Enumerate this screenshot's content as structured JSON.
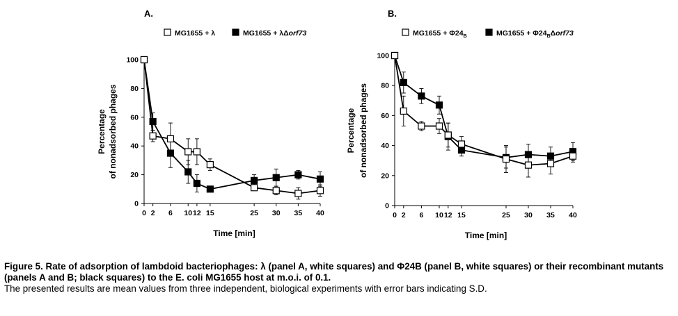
{
  "chart_data": [
    {
      "type": "line",
      "panel_label": "A.",
      "xlabel": "Time [min]",
      "ylabel_line1": "Percentage",
      "ylabel_line2": "of nonadsorbed phages",
      "xlim": [
        0,
        40
      ],
      "ylim": [
        0,
        100
      ],
      "x_ticks": [
        0,
        2,
        6,
        10,
        12,
        15,
        25,
        30,
        35,
        40
      ],
      "y_ticks": [
        0,
        20,
        40,
        60,
        80,
        100
      ],
      "grid": false,
      "legend_position": "top",
      "series": [
        {
          "name": "MG1655 + λ",
          "marker": "open-square",
          "x": [
            0,
            2,
            6,
            10,
            12,
            15,
            25,
            30,
            35,
            40
          ],
          "y": [
            100,
            47,
            45,
            36,
            36,
            27,
            11,
            9,
            7,
            9
          ],
          "error": [
            0,
            4,
            11,
            9,
            9,
            4,
            2,
            3,
            4,
            4
          ]
        },
        {
          "name": "MG1655 + λΔorf73",
          "marker": "filled-square",
          "x": [
            0,
            2,
            6,
            10,
            12,
            15,
            25,
            30,
            35,
            40
          ],
          "y": [
            100,
            57,
            35,
            22,
            14,
            10,
            16,
            18,
            20,
            17
          ],
          "error": [
            0,
            6,
            10,
            8,
            6,
            2,
            4,
            6,
            3,
            5
          ]
        }
      ]
    },
    {
      "type": "line",
      "panel_label": "B.",
      "xlabel": "Time [min]",
      "ylabel_line1": "Percentage",
      "ylabel_line2": "of nonadsorbed phages",
      "xlim": [
        0,
        40
      ],
      "ylim": [
        0,
        100
      ],
      "x_ticks": [
        0,
        2,
        6,
        10,
        12,
        15,
        25,
        30,
        35,
        40
      ],
      "y_ticks": [
        0,
        20,
        40,
        60,
        80,
        100
      ],
      "grid": false,
      "legend_position": "top",
      "series": [
        {
          "name": "MG1655 + Φ24B",
          "marker": "open-square",
          "x": [
            0,
            2,
            6,
            10,
            12,
            15,
            25,
            30,
            35,
            40
          ],
          "y": [
            100,
            63,
            53,
            53,
            47,
            41,
            31,
            27,
            28,
            33
          ],
          "error": [
            0,
            10,
            3,
            5,
            8,
            5,
            9,
            8,
            7,
            4
          ]
        },
        {
          "name": "MG1655 + Φ24BΔorf73",
          "marker": "filled-square",
          "x": [
            0,
            2,
            6,
            10,
            12,
            15,
            25,
            30,
            35,
            40
          ],
          "y": [
            100,
            82,
            73,
            67,
            46,
            37,
            32,
            34,
            33,
            36
          ],
          "error": [
            0,
            7,
            5,
            6,
            9,
            4,
            7,
            7,
            6,
            6
          ]
        }
      ]
    }
  ],
  "caption": {
    "bold_text": "Figure 5. Rate of adsorption of lambdoid bacteriophages: λ (panel A, white squares) and Φ24B (panel B, white squares) or their recombinant mutants (panels A and B; black squares) to the E. coli MG1655 host at m.o.i. of 0.1.",
    "normal_text": "The presented results are mean values from three independent, biological experiments with error bars indicating S.D."
  }
}
